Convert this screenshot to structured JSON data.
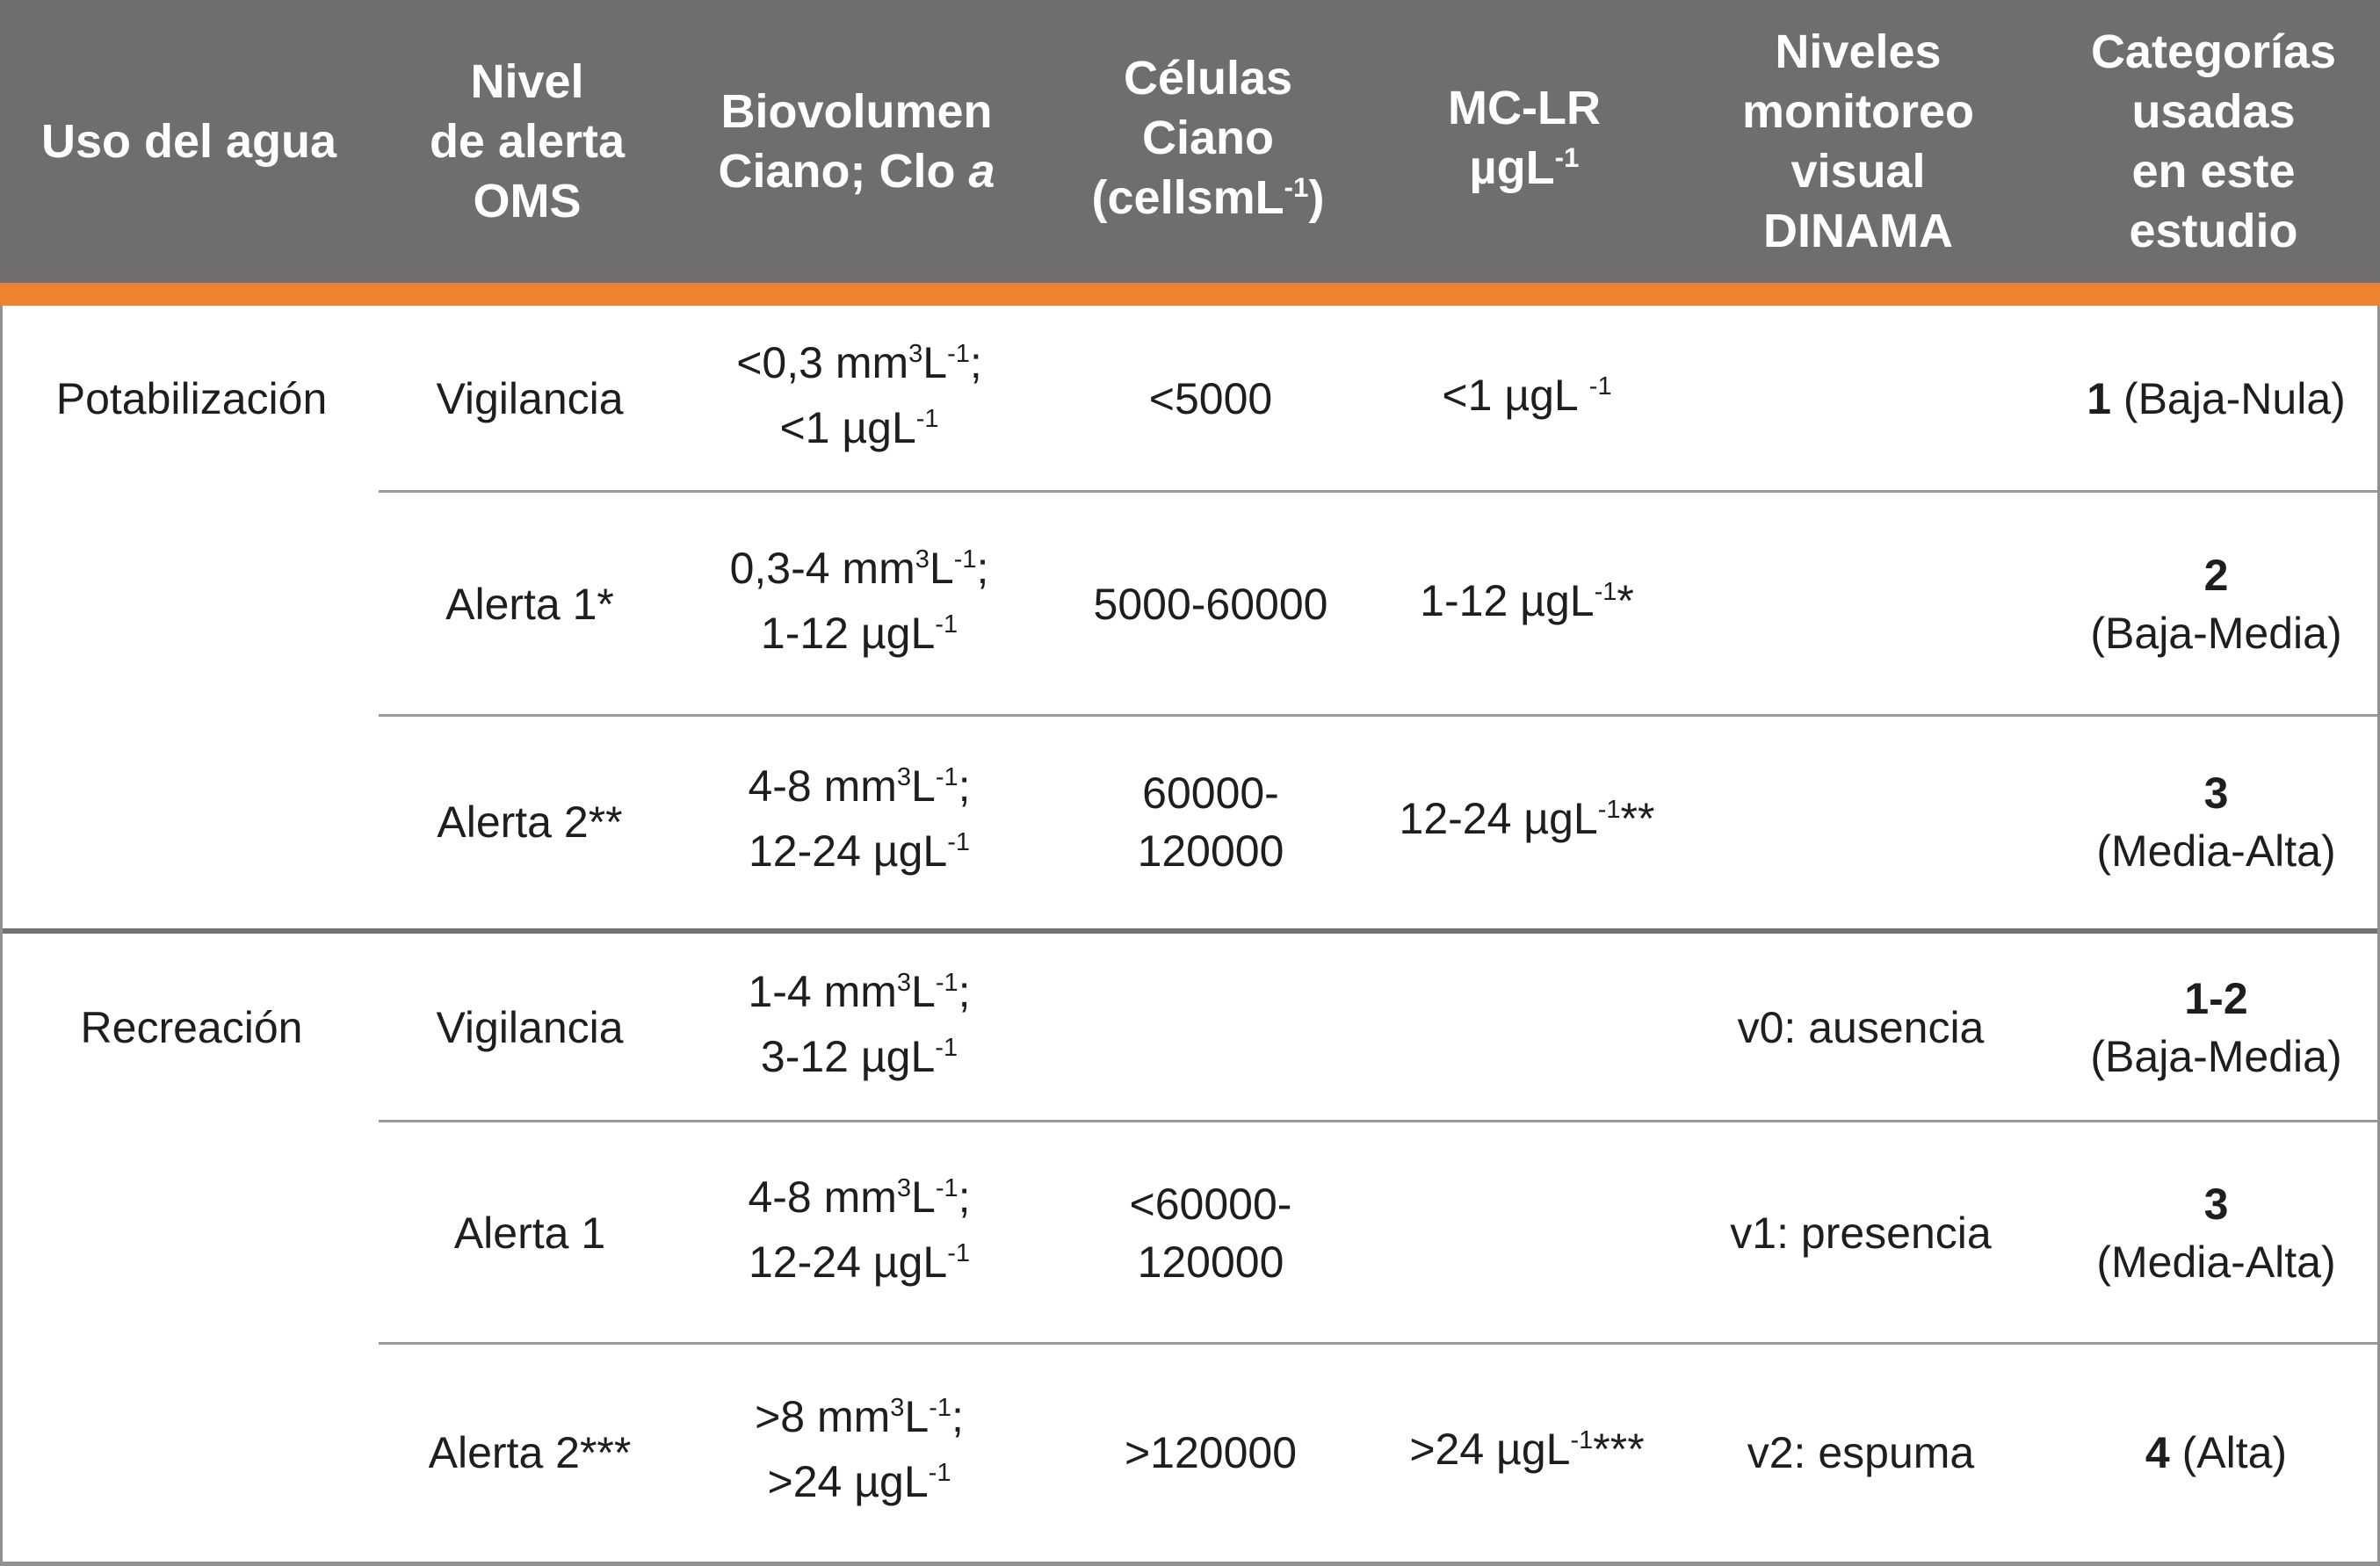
{
  "colors": {
    "header_bg": "#6F6D6E",
    "header_text": "#FFFFFF",
    "accent_bar": "#EE8230",
    "body_bg": "#FFFFFF",
    "text": "#1E1E1E",
    "row_divider": "#9B9999",
    "group_divider": "#747273",
    "outer_border": "#919092"
  },
  "table": {
    "header_columns": [
      {
        "id": "uso-del-agua",
        "lines": [
          [
            {
              "text": "Uso del agua"
            }
          ]
        ]
      },
      {
        "id": "nivel-alerta-oms",
        "lines": [
          [
            {
              "text": "Nivel"
            }
          ],
          [
            {
              "text": "de alerta"
            }
          ],
          [
            {
              "text": "OMS"
            }
          ]
        ]
      },
      {
        "id": "biovolumen",
        "lines": [
          [
            {
              "text": "Biovolumen"
            }
          ],
          [
            {
              "text": "Ciano; Clo "
            },
            {
              "text": "a",
              "italic": true
            }
          ]
        ]
      },
      {
        "id": "celulas-ciano",
        "lines": [
          [
            {
              "text": "Células"
            }
          ],
          [
            {
              "text": "Ciano"
            }
          ],
          [
            {
              "text": "(cellsmL"
            },
            {
              "text": "-1",
              "sup": true
            },
            {
              "text": ")"
            }
          ]
        ]
      },
      {
        "id": "mc-lr",
        "lines": [
          [
            {
              "text": "MC-LR"
            }
          ],
          [
            {
              "text": "µgL"
            },
            {
              "text": "-1",
              "sup": true
            }
          ]
        ]
      },
      {
        "id": "niveles-dinama",
        "lines": [
          [
            {
              "text": "Niveles"
            }
          ],
          [
            {
              "text": "monitoreo"
            }
          ],
          [
            {
              "text": "visual"
            }
          ],
          [
            {
              "text": "DINAMA"
            }
          ]
        ]
      },
      {
        "id": "categorias",
        "lines": [
          [
            {
              "text": "Categorías"
            }
          ],
          [
            {
              "text": "usadas"
            }
          ],
          [
            {
              "text": "en este"
            }
          ],
          [
            {
              "text": "estudio"
            }
          ]
        ]
      }
    ],
    "rows": [
      {
        "divider": "none",
        "cells": [
          {
            "lines": [
              [
                {
                  "text": "Potabilización"
                }
              ]
            ]
          },
          {
            "lines": [
              [
                {
                  "text": "Vigilancia"
                }
              ]
            ]
          },
          {
            "lines": [
              [
                {
                  "text": "<0,3 mm"
                },
                {
                  "text": "3",
                  "sup": true
                },
                {
                  "text": "L"
                },
                {
                  "text": "-1",
                  "sup": true
                },
                {
                  "text": ";"
                }
              ],
              [
                {
                  "text": "<1 µgL"
                },
                {
                  "text": "-1",
                  "sup": true
                }
              ]
            ]
          },
          {
            "lines": [
              [
                {
                  "text": "<5000"
                }
              ]
            ]
          },
          {
            "lines": [
              [
                {
                  "text": "<1 µgL "
                },
                {
                  "text": "-1",
                  "sup": true
                }
              ]
            ]
          },
          {
            "lines": []
          },
          {
            "lines": [
              [
                {
                  "text": "1",
                  "bold": true
                },
                {
                  "text": " (Baja-Nula)"
                }
              ]
            ]
          }
        ]
      },
      {
        "divider": "row",
        "cells": [
          {
            "lines": []
          },
          {
            "lines": [
              [
                {
                  "text": "Alerta 1*"
                }
              ]
            ]
          },
          {
            "lines": [
              [
                {
                  "text": "0,3-4 mm"
                },
                {
                  "text": "3",
                  "sup": true
                },
                {
                  "text": "L"
                },
                {
                  "text": "-1",
                  "sup": true
                },
                {
                  "text": ";"
                }
              ],
              [
                {
                  "text": "1-12 µgL"
                },
                {
                  "text": "-1",
                  "sup": true
                }
              ]
            ]
          },
          {
            "lines": [
              [
                {
                  "text": "5000-60000"
                }
              ]
            ]
          },
          {
            "lines": [
              [
                {
                  "text": "1-12 µgL"
                },
                {
                  "text": "-1",
                  "sup": true
                },
                {
                  "text": "*"
                }
              ]
            ]
          },
          {
            "lines": []
          },
          {
            "lines": [
              [
                {
                  "text": "2",
                  "bold": true
                }
              ],
              [
                {
                  "text": "(Baja-Media)"
                }
              ]
            ]
          }
        ]
      },
      {
        "divider": "row",
        "cells": [
          {
            "lines": []
          },
          {
            "lines": [
              [
                {
                  "text": "Alerta 2**"
                }
              ]
            ]
          },
          {
            "lines": [
              [
                {
                  "text": "4-8 mm"
                },
                {
                  "text": "3",
                  "sup": true
                },
                {
                  "text": "L"
                },
                {
                  "text": "-1",
                  "sup": true
                },
                {
                  "text": ";"
                }
              ],
              [
                {
                  "text": "12-24 µgL"
                },
                {
                  "text": "-1",
                  "sup": true
                }
              ]
            ]
          },
          {
            "lines": [
              [
                {
                  "text": "60000-"
                }
              ],
              [
                {
                  "text": "120000"
                }
              ]
            ]
          },
          {
            "lines": [
              [
                {
                  "text": "12-24 µgL"
                },
                {
                  "text": "-1",
                  "sup": true
                },
                {
                  "text": "**"
                }
              ]
            ]
          },
          {
            "lines": []
          },
          {
            "lines": [
              [
                {
                  "text": "3",
                  "bold": true
                }
              ],
              [
                {
                  "text": "(Media-Alta)"
                }
              ]
            ]
          }
        ]
      },
      {
        "divider": "group",
        "cells": [
          {
            "lines": [
              [
                {
                  "text": "Recreación"
                }
              ]
            ]
          },
          {
            "lines": [
              [
                {
                  "text": "Vigilancia"
                }
              ]
            ]
          },
          {
            "lines": [
              [
                {
                  "text": "1-4 mm"
                },
                {
                  "text": "3",
                  "sup": true
                },
                {
                  "text": "L"
                },
                {
                  "text": "-1",
                  "sup": true
                },
                {
                  "text": ";"
                }
              ],
              [
                {
                  "text": "3-12 µgL"
                },
                {
                  "text": "-1",
                  "sup": true
                }
              ]
            ]
          },
          {
            "lines": []
          },
          {
            "lines": []
          },
          {
            "lines": [
              [
                {
                  "text": "v0: ausencia"
                }
              ]
            ]
          },
          {
            "lines": [
              [
                {
                  "text": "1-2",
                  "bold": true
                }
              ],
              [
                {
                  "text": "(Baja-Media)"
                }
              ]
            ]
          }
        ]
      },
      {
        "divider": "row",
        "cells": [
          {
            "lines": []
          },
          {
            "lines": [
              [
                {
                  "text": "Alerta 1"
                }
              ]
            ]
          },
          {
            "lines": [
              [
                {
                  "text": "4-8 mm"
                },
                {
                  "text": "3",
                  "sup": true
                },
                {
                  "text": "L"
                },
                {
                  "text": "-1",
                  "sup": true
                },
                {
                  "text": ";"
                }
              ],
              [
                {
                  "text": "12-24 µgL"
                },
                {
                  "text": "-1",
                  "sup": true
                }
              ]
            ]
          },
          {
            "lines": [
              [
                {
                  "text": "<60000-"
                }
              ],
              [
                {
                  "text": "120000"
                }
              ]
            ]
          },
          {
            "lines": []
          },
          {
            "lines": [
              [
                {
                  "text": "v1: presencia"
                }
              ]
            ]
          },
          {
            "lines": [
              [
                {
                  "text": "3",
                  "bold": true
                }
              ],
              [
                {
                  "text": "(Media-Alta)"
                }
              ]
            ]
          }
        ]
      },
      {
        "divider": "row",
        "cells": [
          {
            "lines": []
          },
          {
            "lines": [
              [
                {
                  "text": "Alerta 2***"
                }
              ]
            ]
          },
          {
            "lines": [
              [
                {
                  "text": ">8 mm"
                },
                {
                  "text": "3",
                  "sup": true
                },
                {
                  "text": "L"
                },
                {
                  "text": "-1",
                  "sup": true
                },
                {
                  "text": ";"
                }
              ],
              [
                {
                  "text": ">24 µgL"
                },
                {
                  "text": "-1",
                  "sup": true
                }
              ]
            ]
          },
          {
            "lines": [
              [
                {
                  "text": ">120000"
                }
              ]
            ]
          },
          {
            "lines": [
              [
                {
                  "text": ">24 µgL"
                },
                {
                  "text": "-1",
                  "sup": true
                },
                {
                  "text": "***"
                }
              ]
            ]
          },
          {
            "lines": [
              [
                {
                  "text": "v2: espuma"
                }
              ]
            ]
          },
          {
            "lines": [
              [
                {
                  "text": "4",
                  "bold": true
                },
                {
                  "text": " (Alta)"
                }
              ]
            ]
          }
        ]
      }
    ]
  }
}
